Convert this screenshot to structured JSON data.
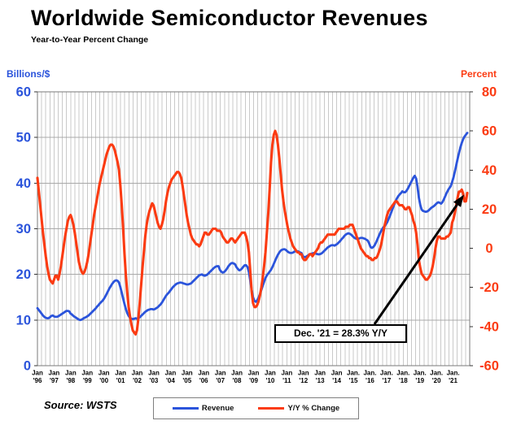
{
  "header": {
    "title": "Worldwide Semiconductor Revenues",
    "subtitle": "Year-to-Year Percent Change"
  },
  "axes": {
    "left_title": "Billions/$",
    "right_title": "Percent",
    "left_color": "#2B54DB",
    "right_color": "#FB3B12",
    "left_ticks": [
      0,
      10,
      20,
      30,
      40,
      50,
      60
    ],
    "right_ticks": [
      -60,
      -40,
      -20,
      0,
      20,
      40,
      60,
      80
    ],
    "x_labels": [
      {
        "month": "Jan",
        "year": "'96"
      },
      {
        "month": "Jan",
        "year": "'97"
      },
      {
        "month": "Jan",
        "year": "'98"
      },
      {
        "month": "Jan",
        "year": "'99"
      },
      {
        "month": "Jan",
        "year": "'00"
      },
      {
        "month": "Jan",
        "year": "'01"
      },
      {
        "month": "Jan",
        "year": "'02"
      },
      {
        "month": "Jan",
        "year": "'03"
      },
      {
        "month": "Jan",
        "year": "'04"
      },
      {
        "month": "Jan",
        "year": "'05"
      },
      {
        "month": "Jan",
        "year": "'06"
      },
      {
        "month": "Jan",
        "year": "'07"
      },
      {
        "month": "Jan",
        "year": "'08"
      },
      {
        "month": "Jan",
        "year": "'09"
      },
      {
        "month": "Jan",
        "year": "'10"
      },
      {
        "month": "Jan",
        "year": "'11"
      },
      {
        "month": "Jan",
        "year": "'12"
      },
      {
        "month": "Jan",
        "year": "'13"
      },
      {
        "month": "Jan",
        "year": "'14"
      },
      {
        "month": "Jan.",
        "year": "'15"
      },
      {
        "month": "Jan.",
        "year": "'16"
      },
      {
        "month": "Jan.",
        "year": "'17"
      },
      {
        "month": "Jan.",
        "year": "'18"
      },
      {
        "month": "Jan.",
        "year": "'19"
      },
      {
        "month": "Jan.",
        "year": "'20"
      },
      {
        "month": "Jan.",
        "year": "'21"
      }
    ]
  },
  "legend": {
    "items": [
      {
        "label": "Revenue",
        "color": "#2B54DB"
      },
      {
        "label": "Y/Y % Change",
        "color": "#FB3B12"
      }
    ]
  },
  "annotation": {
    "text": "Dec. '21 = 28.3% Y/Y",
    "points_to_value": 28.3
  },
  "source": "Source: WSTS",
  "chart_data": {
    "type": "line",
    "title": "Worldwide Semiconductor Revenues",
    "subtitle": "Year-to-Year Percent Change",
    "x_start": "1996-01",
    "x_end": "2021-12",
    "frequency": "monthly",
    "xlabel": "",
    "ylabel_left": "Billions/$",
    "ylabel_right": "Percent",
    "ylim_left": [
      0,
      60
    ],
    "ylim_right": [
      -60,
      80
    ],
    "grid": "vertical-quarterly and horizontal-10s",
    "legend_position": "bottom-center",
    "series": [
      {
        "name": "Revenue",
        "axis": "left",
        "units": "billions USD per month (3-mo avg)",
        "color": "#2B54DB",
        "values": [
          12.6,
          12.2,
          11.8,
          11.4,
          11.0,
          10.7,
          10.5,
          10.4,
          10.4,
          10.6,
          10.9,
          11.0,
          10.8,
          10.7,
          10.7,
          10.8,
          11.0,
          11.2,
          11.4,
          11.6,
          11.8,
          12.0,
          12.0,
          11.9,
          11.4,
          11.2,
          10.9,
          10.7,
          10.5,
          10.3,
          10.1,
          10.0,
          10.1,
          10.3,
          10.5,
          10.6,
          10.8,
          11.0,
          11.3,
          11.6,
          11.9,
          12.2,
          12.5,
          12.9,
          13.2,
          13.6,
          13.9,
          14.2,
          14.6,
          15.1,
          15.7,
          16.3,
          16.9,
          17.4,
          17.9,
          18.3,
          18.6,
          18.7,
          18.6,
          18.2,
          17.2,
          16.0,
          14.7,
          13.5,
          12.4,
          11.5,
          10.9,
          10.5,
          10.3,
          10.2,
          10.3,
          10.4,
          10.3,
          10.4,
          10.6,
          10.9,
          11.2,
          11.5,
          11.8,
          12.0,
          12.2,
          12.3,
          12.4,
          12.4,
          12.3,
          12.4,
          12.6,
          12.8,
          13.1,
          13.4,
          13.8,
          14.3,
          14.8,
          15.3,
          15.7,
          16.0,
          16.4,
          16.8,
          17.2,
          17.5,
          17.8,
          18.0,
          18.1,
          18.2,
          18.2,
          18.1,
          18.0,
          17.9,
          17.8,
          17.8,
          17.9,
          18.0,
          18.3,
          18.6,
          18.9,
          19.2,
          19.5,
          19.8,
          19.9,
          20.0,
          19.8,
          19.7,
          19.8,
          20.0,
          20.3,
          20.6,
          20.9,
          21.2,
          21.5,
          21.7,
          21.8,
          21.8,
          21.0,
          20.6,
          20.4,
          20.5,
          20.8,
          21.2,
          21.7,
          22.1,
          22.4,
          22.5,
          22.4,
          22.2,
          21.6,
          21.2,
          20.9,
          21.0,
          21.3,
          21.7,
          22.0,
          22.0,
          21.6,
          20.5,
          18.6,
          16.6,
          15.0,
          14.2,
          14.0,
          14.3,
          14.9,
          15.7,
          16.6,
          17.5,
          18.4,
          19.2,
          19.8,
          20.2,
          20.6,
          21.0,
          21.6,
          22.3,
          23.0,
          23.7,
          24.3,
          24.8,
          25.2,
          25.4,
          25.5,
          25.5,
          25.3,
          25.0,
          24.8,
          24.7,
          24.7,
          24.8,
          25.0,
          25.1,
          25.1,
          25.0,
          24.8,
          24.7,
          24.0,
          23.8,
          23.8,
          24.0,
          24.2,
          24.4,
          24.5,
          24.6,
          24.7,
          24.6,
          24.5,
          24.4,
          24.4,
          24.5,
          24.7,
          25.0,
          25.3,
          25.6,
          25.9,
          26.1,
          26.3,
          26.4,
          26.4,
          26.3,
          26.5,
          26.7,
          27.0,
          27.3,
          27.7,
          28.0,
          28.4,
          28.7,
          28.9,
          29.0,
          28.9,
          28.7,
          28.4,
          28.1,
          27.9,
          27.8,
          27.8,
          27.9,
          28.0,
          28.0,
          27.9,
          27.8,
          27.6,
          27.4,
          26.8,
          26.0,
          25.8,
          26.0,
          26.4,
          27.0,
          27.7,
          28.4,
          29.1,
          29.7,
          30.2,
          30.5,
          30.9,
          31.4,
          32.1,
          32.8,
          33.6,
          34.4,
          35.2,
          35.9,
          36.6,
          37.1,
          37.5,
          37.8,
          38.2,
          38.0,
          38.0,
          38.3,
          38.8,
          39.4,
          40.0,
          40.6,
          41.2,
          41.6,
          41.0,
          39.2,
          36.8,
          35.2,
          34.2,
          33.9,
          33.8,
          33.7,
          33.8,
          34.0,
          34.3,
          34.6,
          34.8,
          35.0,
          35.3,
          35.6,
          35.8,
          35.7,
          35.5,
          35.8,
          36.4,
          37.1,
          37.8,
          38.4,
          38.9,
          39.3,
          40.2,
          41.2,
          42.5,
          43.9,
          45.3,
          46.6,
          47.8,
          48.8,
          49.6,
          50.2,
          50.6,
          51.0
        ]
      },
      {
        "name": "Y/Y % Change",
        "axis": "right",
        "units": "percent",
        "color": "#FB3B12",
        "values": [
          36,
          29,
          22,
          15,
          8,
          2,
          -4,
          -9,
          -13,
          -16,
          -17,
          -18,
          -16,
          -14,
          -14,
          -16,
          -13,
          -9,
          -4,
          1,
          6,
          10,
          14,
          16,
          17,
          15,
          12,
          8,
          3,
          -2,
          -7,
          -10,
          -12,
          -13,
          -12,
          -10,
          -7,
          -3,
          2,
          7,
          12,
          17,
          21,
          25,
          29,
          33,
          36,
          39,
          42,
          45,
          48,
          50,
          52,
          53,
          53,
          52,
          50,
          47,
          44,
          40,
          32,
          22,
          10,
          -3,
          -14,
          -23,
          -30,
          -35,
          -39,
          -42,
          -43,
          -44,
          -42,
          -36,
          -28,
          -19,
          -10,
          -2,
          6,
          12,
          16,
          19,
          21,
          23,
          22,
          19,
          16,
          13,
          11,
          10,
          12,
          15,
          19,
          24,
          28,
          31,
          33,
          35,
          36,
          37,
          38,
          39,
          39,
          38,
          36,
          32,
          27,
          22,
          17,
          13,
          10,
          7,
          5,
          4,
          3,
          2,
          2,
          1,
          2,
          4,
          6,
          8,
          8,
          7,
          7,
          8,
          9,
          10,
          10,
          10,
          9,
          9,
          9,
          8,
          6,
          5,
          4,
          3,
          3,
          4,
          5,
          5,
          4,
          3,
          4,
          5,
          6,
          7,
          8,
          8,
          8,
          6,
          3,
          -2,
          -12,
          -22,
          -28,
          -30,
          -30,
          -29,
          -27,
          -24,
          -20,
          -15,
          -9,
          -2,
          8,
          18,
          30,
          44,
          53,
          58,
          60,
          58,
          53,
          46,
          38,
          30,
          24,
          19,
          15,
          11,
          8,
          5,
          3,
          1,
          0,
          -1,
          -2,
          -2,
          -3,
          -3,
          -5,
          -6,
          -6,
          -5,
          -4,
          -3,
          -3,
          -4,
          -3,
          -2,
          -1,
          0,
          2,
          3,
          3,
          4,
          5,
          6,
          7,
          7,
          7,
          7,
          7,
          7,
          8,
          9,
          10,
          10,
          10,
          10,
          10,
          11,
          11,
          11,
          12,
          12,
          12,
          10,
          8,
          6,
          4,
          2,
          0,
          -1,
          -2,
          -3,
          -4,
          -4,
          -5,
          -5,
          -6,
          -6,
          -5,
          -5,
          -4,
          -2,
          0,
          3,
          7,
          11,
          14,
          17,
          19,
          20,
          21,
          22,
          23,
          24,
          24,
          23,
          22,
          22,
          22,
          21,
          20,
          20,
          21,
          21,
          19,
          17,
          14,
          12,
          8,
          2,
          -6,
          -10,
          -13,
          -14,
          -15,
          -16,
          -16,
          -15,
          -14,
          -12,
          -9,
          -5,
          0,
          4,
          6,
          6,
          5,
          5,
          5,
          5,
          6,
          6,
          7,
          8,
          13,
          15,
          18,
          22,
          26,
          29,
          29,
          30,
          28,
          24,
          24,
          28.3
        ]
      }
    ]
  }
}
